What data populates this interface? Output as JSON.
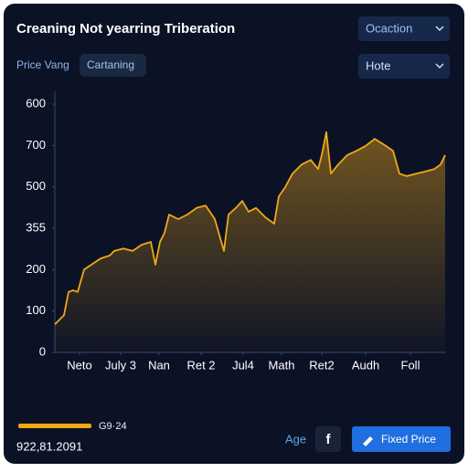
{
  "header": {
    "title": "Creaning Not yearring Triberation",
    "dropdown": "Ocaction"
  },
  "controls": {
    "label": "Price Vang",
    "chip": "Cartaning",
    "dropdown": "Hote"
  },
  "footer": {
    "total": "922,81.2091",
    "link": "Age",
    "icon": "f",
    "button": "Fixed Price"
  },
  "chart_data": {
    "type": "line",
    "x": [
      0,
      10,
      15,
      20,
      25,
      32,
      40,
      50,
      60,
      65,
      75,
      85,
      95,
      105,
      110,
      115,
      120,
      125,
      135,
      145,
      155,
      165,
      175,
      185,
      190,
      198,
      205,
      212,
      220,
      230,
      240,
      245,
      252,
      260,
      270,
      280,
      288,
      292,
      297,
      302,
      310,
      320,
      330,
      340,
      350,
      360,
      370,
      377,
      385,
      395,
      405,
      415,
      422,
      427
    ],
    "series": [
      {
        "name": "G9·24",
        "color": "#f0a818",
        "values": [
          68,
          90,
          146,
          150,
          146,
          200,
          212,
          227,
          234,
          245,
          251,
          245,
          260,
          267,
          212,
          267,
          289,
          333,
          322,
          333,
          349,
          355,
          322,
          245,
          333,
          349,
          366,
          340,
          349,
          327,
          311,
          377,
          399,
          432,
          454,
          465,
          443,
          477,
          532,
          432,
          454,
          477,
          487,
          499,
          516,
          502,
          487,
          432,
          426,
          432,
          437,
          443,
          454,
          477
        ]
      }
    ],
    "xlim": [
      0,
      427
    ],
    "xticks": [
      {
        "value": 27,
        "label": "Neto"
      },
      {
        "value": 72,
        "label": "July 3"
      },
      {
        "value": 114,
        "label": "Nan"
      },
      {
        "value": 160,
        "label": "Ret 2"
      },
      {
        "value": 206,
        "label": "Jul4"
      },
      {
        "value": 248,
        "label": "Math"
      },
      {
        "value": 292,
        "label": "Ret2"
      },
      {
        "value": 340,
        "label": "Audh"
      },
      {
        "value": 389,
        "label": "Foll"
      }
    ],
    "ylim": [
      0,
      600
    ],
    "yticks": [
      0,
      100,
      200,
      {
        "value": 300,
        "label": "355"
      },
      {
        "value": 400,
        "label": "500"
      },
      {
        "value": 500,
        "label": "700"
      },
      600
    ]
  }
}
